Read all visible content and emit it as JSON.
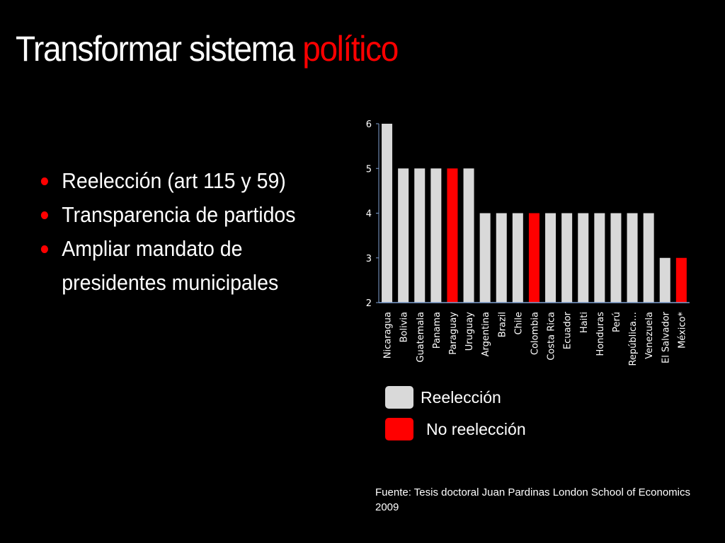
{
  "slide": {
    "title_main": "Transformar sistema",
    "title_accent": "político",
    "bullets": [
      "Reelección (art 115 y 59)",
      "Transparencia de partidos",
      "Ampliar mandato de presidentes municipales"
    ],
    "source": "Fuente: Tesis doctoral Juan Pardinas London School of Economics 2009"
  },
  "colors": {
    "accent": "#ff0000",
    "reeleccion": "#d9d9d9",
    "no_reeleccion": "#ff0000",
    "axis": "#7f9fd0",
    "background": "#000000"
  },
  "chart_data": {
    "type": "bar",
    "title": "",
    "xlabel": "",
    "ylabel": "",
    "ylim": [
      2,
      6
    ],
    "yticks": [
      2,
      3,
      4,
      5,
      6
    ],
    "grid": false,
    "legend_placement": "bottom",
    "categories": [
      "Nicaragua",
      "Bolivia",
      "Guatemala",
      "Panama",
      "Paraguay",
      "Uruguay",
      "Argentina",
      "Brazil",
      "Chile",
      "Colombia",
      "Costa Rica",
      "Ecuador",
      "Haiti",
      "Honduras",
      "Perú",
      "República…",
      "Venezuela",
      "El Salvador",
      "México*"
    ],
    "values": [
      6,
      5,
      5,
      5,
      5,
      5,
      4,
      4,
      4,
      4,
      4,
      4,
      4,
      4,
      4,
      4,
      4,
      3,
      3
    ],
    "groups": [
      "Reelección",
      "Reelección",
      "Reelección",
      "Reelección",
      "No reelección",
      "Reelección",
      "Reelección",
      "Reelección",
      "Reelección",
      "No reelección",
      "Reelección",
      "Reelección",
      "Reelección",
      "Reelección",
      "Reelección",
      "Reelección",
      "Reelección",
      "Reelección",
      "No reelección"
    ],
    "legend": [
      {
        "label": "Reelección",
        "color": "#d9d9d9"
      },
      {
        "label": "No reelección",
        "color": "#ff0000"
      }
    ]
  }
}
